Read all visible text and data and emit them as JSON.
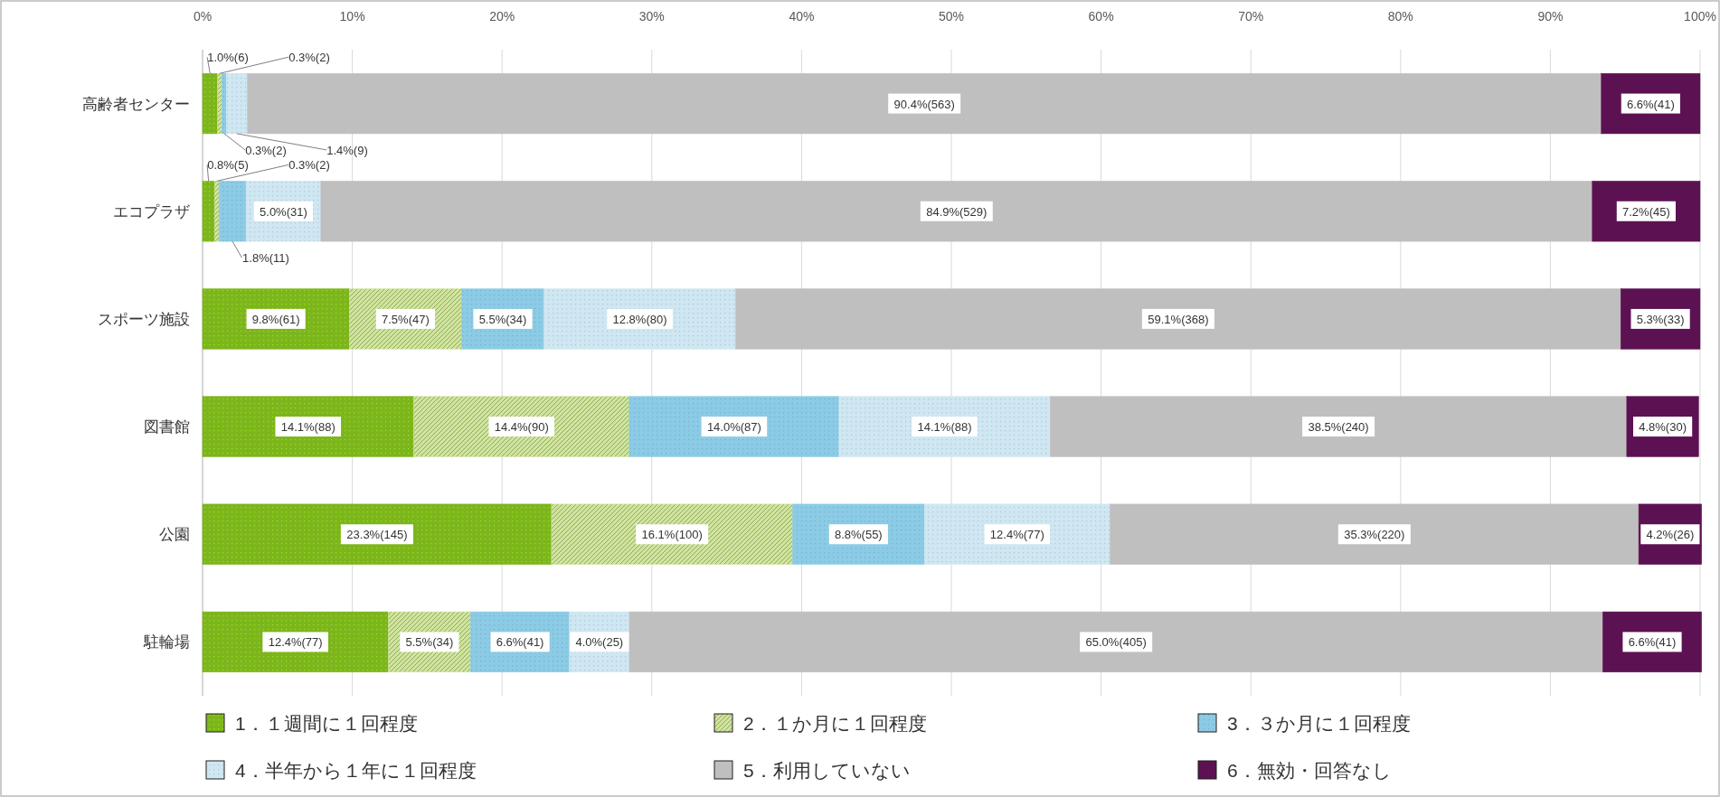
{
  "chart_data": {
    "type": "bar",
    "orientation": "horizontal",
    "stacked": true,
    "grid": "x",
    "legend": "bottom",
    "categories": [
      "高齢者センター",
      "エコプラザ",
      "スポーツ施設",
      "図書館",
      "公園",
      "駐輪場"
    ],
    "xlim": [
      0,
      100
    ],
    "xticks": [
      {
        "value": 0,
        "label": "0%"
      },
      {
        "value": 10,
        "label": "10%"
      },
      {
        "value": 20,
        "label": "20%"
      },
      {
        "value": 30,
        "label": "30%"
      },
      {
        "value": 40,
        "label": "40%"
      },
      {
        "value": 50,
        "label": "50%"
      },
      {
        "value": 60,
        "label": "60%"
      },
      {
        "value": 70,
        "label": "70%"
      },
      {
        "value": 80,
        "label": "80%"
      },
      {
        "value": 90,
        "label": "90%"
      },
      {
        "value": 100,
        "label": "100%"
      }
    ],
    "series": [
      {
        "name": "1．１週間に１回程度",
        "color": "#7cb51c",
        "values": [
          1.0,
          0.8,
          9.8,
          14.1,
          23.3,
          12.4
        ],
        "value_labels": [
          "1.0%(6)",
          "0.8%(5)",
          "9.8%(61)",
          "14.1%(88)",
          "23.3%(145)",
          "12.4%(77)"
        ]
      },
      {
        "name": "2．１か月に１回程度",
        "color": "#cfe59a",
        "values": [
          0.3,
          0.3,
          7.5,
          14.4,
          16.1,
          5.5
        ],
        "value_labels": [
          "0.3%(2)",
          "0.3%(2)",
          "7.5%(47)",
          "14.4%(90)",
          "16.1%(100)",
          "5.5%(34)"
        ]
      },
      {
        "name": "3．３か月に１回程度",
        "color": "#8ccbe6",
        "values": [
          0.3,
          1.8,
          5.5,
          14.0,
          8.8,
          6.6
        ],
        "value_labels": [
          "0.3%(2)",
          "1.8%(11)",
          "5.5%(34)",
          "14.0%(87)",
          "8.8%(55)",
          "6.6%(41)"
        ]
      },
      {
        "name": "4．半年から１年に１回程度",
        "color": "#cfe7f2",
        "values": [
          1.4,
          5.0,
          12.8,
          14.1,
          12.4,
          4.0
        ],
        "value_labels": [
          "1.4%(9)",
          "5.0%(31)",
          "12.8%(80)",
          "14.1%(88)",
          "12.4%(77)",
          "4.0%(25)"
        ]
      },
      {
        "name": "5．利用していない",
        "color": "#bfbfbf",
        "values": [
          90.4,
          84.9,
          59.1,
          38.5,
          35.3,
          65.0
        ],
        "value_labels": [
          "90.4%(563)",
          "84.9%(529)",
          "59.1%(368)",
          "38.5%(240)",
          "35.3%(220)",
          "65.0%(405)"
        ]
      },
      {
        "name": "6．無効・回答なし",
        "color": "#5c1252",
        "values": [
          6.6,
          7.2,
          5.3,
          4.8,
          4.2,
          6.6
        ],
        "value_labels": [
          "6.6%(41)",
          "7.2%(45)",
          "5.3%(33)",
          "4.8%(30)",
          "4.2%(26)",
          "6.6%(41)"
        ]
      }
    ]
  }
}
